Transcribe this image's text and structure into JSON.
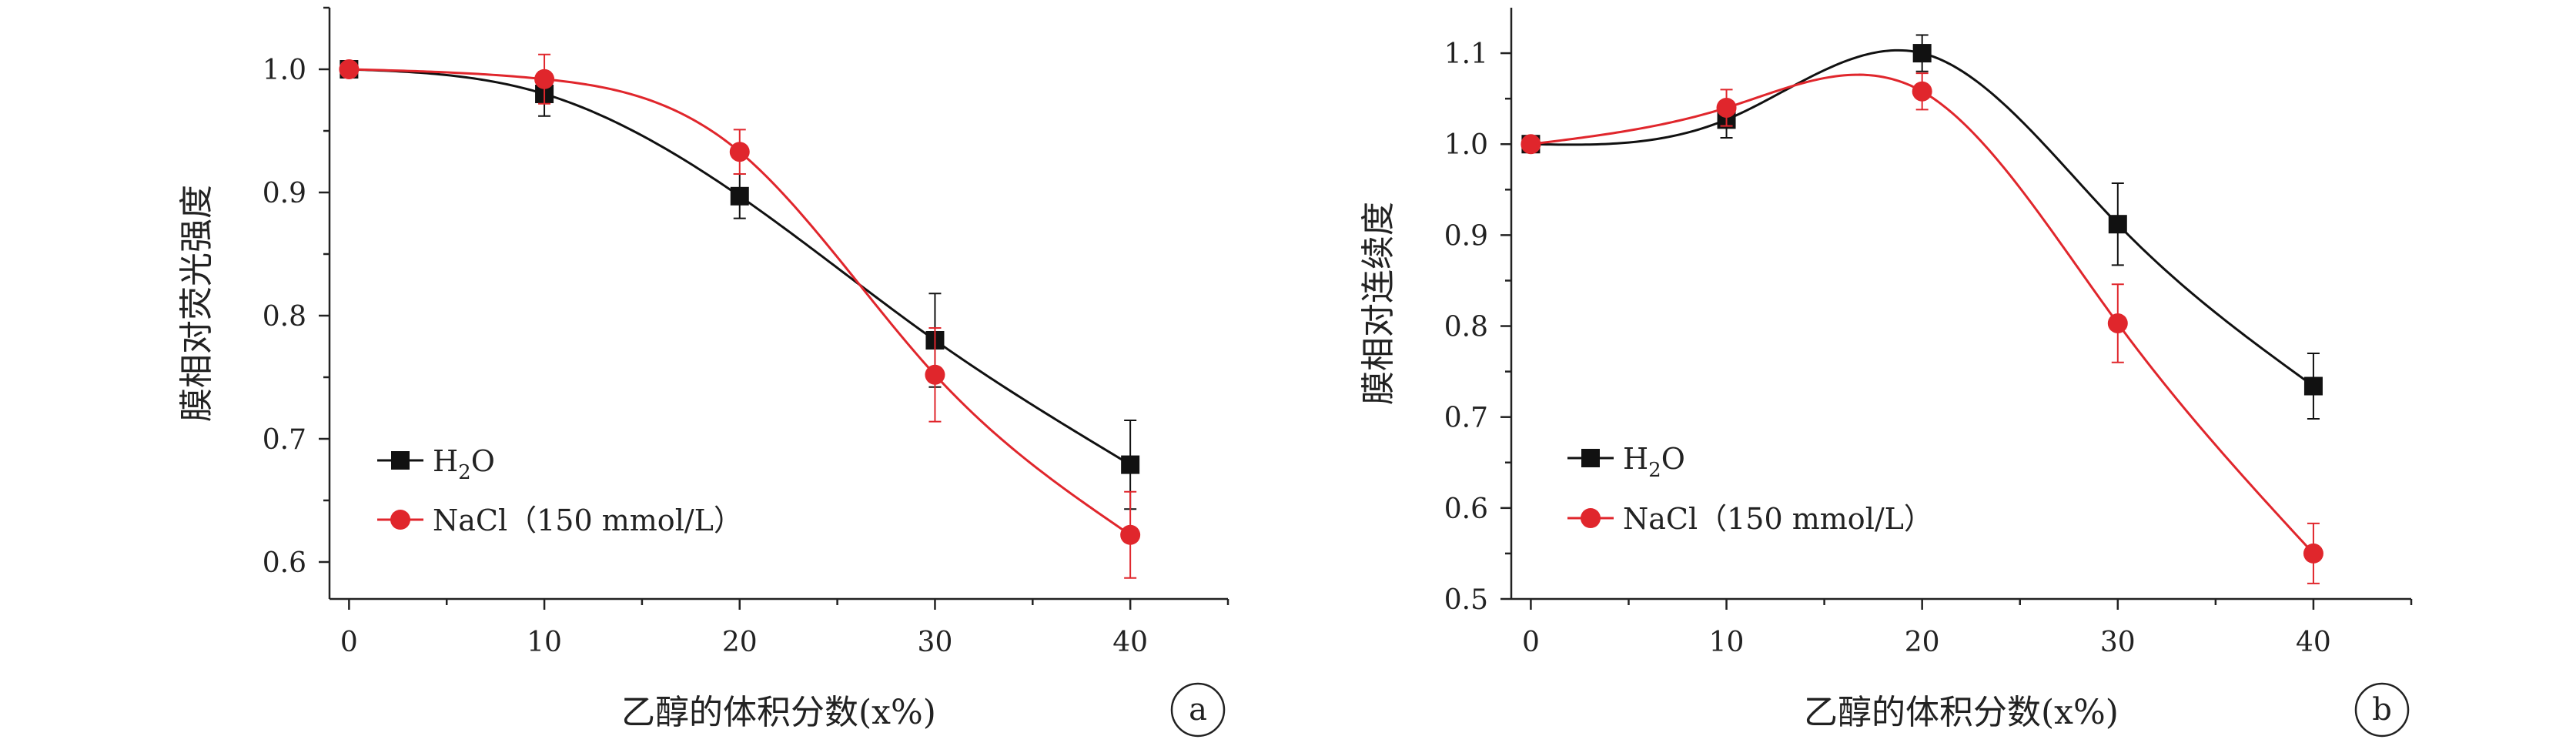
{
  "chart_data": [
    {
      "type": "line",
      "panel_label": "a",
      "xlabel": "乙醇的体积分数(x%)",
      "ylabel": "膜相对荧光强度",
      "x": [
        0,
        10,
        20,
        30,
        40
      ],
      "xlim": [
        -1,
        45
      ],
      "ylim": [
        0.57,
        1.05
      ],
      "xticks": [
        0,
        10,
        20,
        30,
        40
      ],
      "yticks": [
        0.6,
        0.7,
        0.8,
        0.9,
        1.0
      ],
      "ytick_labels": [
        "0.6",
        "0.7",
        "0.8",
        "0.9",
        "1.0"
      ],
      "legend_position": "lower-left",
      "series": [
        {
          "name": "H2O",
          "legend_main": "H",
          "legend_sub": "2",
          "legend_tail": "O",
          "color": "#111111",
          "marker": "square",
          "values": [
            1.0,
            0.98,
            0.897,
            0.78,
            0.679
          ],
          "errors": [
            0.0,
            0.018,
            0.018,
            0.038,
            0.036
          ]
        },
        {
          "name": "NaCl（150 mmol/L）",
          "legend_main": "NaCl（150 mmol/L）",
          "color": "#e0262c",
          "marker": "circle",
          "values": [
            1.0,
            0.992,
            0.933,
            0.752,
            0.622
          ],
          "errors": [
            0.0,
            0.02,
            0.018,
            0.038,
            0.035
          ]
        }
      ]
    },
    {
      "type": "line",
      "panel_label": "b",
      "xlabel": "乙醇的体积分数(x%)",
      "ylabel": "膜相对连续度",
      "x": [
        0,
        10,
        20,
        30,
        40
      ],
      "xlim": [
        -1,
        45
      ],
      "ylim": [
        0.5,
        1.15
      ],
      "xticks": [
        0,
        10,
        20,
        30,
        40
      ],
      "yticks": [
        0.5,
        0.6,
        0.7,
        0.8,
        0.9,
        1.0,
        1.1
      ],
      "ytick_labels": [
        "0.5",
        "0.6",
        "0.7",
        "0.8",
        "0.9",
        "1.0",
        "1.1"
      ],
      "legend_position": "lower-left",
      "series": [
        {
          "name": "H2O",
          "legend_main": "H",
          "legend_sub": "2",
          "legend_tail": "O",
          "color": "#111111",
          "marker": "square",
          "values": [
            1.0,
            1.027,
            1.1,
            0.912,
            0.734
          ],
          "errors": [
            0.0,
            0.02,
            0.02,
            0.045,
            0.036
          ]
        },
        {
          "name": "NaCl（150 mmol/L）",
          "legend_main": "NaCl（150 mmol/L）",
          "color": "#e0262c",
          "marker": "circle",
          "values": [
            1.0,
            1.04,
            1.058,
            0.803,
            0.55
          ],
          "errors": [
            0.0,
            0.02,
            0.02,
            0.043,
            0.033
          ]
        }
      ]
    }
  ]
}
